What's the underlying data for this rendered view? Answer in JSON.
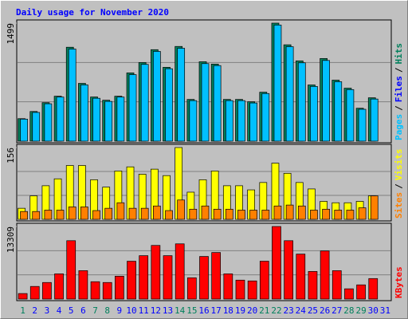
{
  "title": "Daily usage for November 2020",
  "legend_separator": "/",
  "chart_data": [
    {
      "type": "bar",
      "legend": [
        {
          "name": "Pages",
          "color": "#00c0ff"
        },
        {
          "name": "Files",
          "color": "#0000ff"
        },
        {
          "name": "Hits",
          "color": "#00805c"
        }
      ],
      "series": [
        {
          "color": "#00805c",
          "values": [
            286,
            377,
            489,
            571,
            1193,
            734,
            561,
            520,
            571,
            867,
            999,
            1162,
            938,
            1203,
            530,
            1009,
            979,
            530,
            530,
            500,
            622,
            1499,
            1224,
            1020,
            714,
            1050,
            775,
            673,
            418,
            551,
            null
          ]
        },
        {
          "color": "#00c0ff",
          "values": [
            280,
            365,
            475,
            560,
            1170,
            715,
            545,
            505,
            560,
            845,
            975,
            1140,
            920,
            1180,
            515,
            985,
            960,
            515,
            515,
            485,
            605,
            1475,
            1200,
            995,
            695,
            1025,
            755,
            655,
            405,
            535,
            null
          ]
        }
      ],
      "ylim": [
        0,
        1499
      ],
      "yticks": [
        1499
      ],
      "grid": true
    },
    {
      "type": "bar",
      "legend": [
        {
          "name": "Sites",
          "color": "#ff8000"
        },
        {
          "name": "Visits",
          "color": "#ffff00"
        }
      ],
      "series": [
        {
          "color": "#ffff00",
          "values": [
            24,
            51,
            73,
            88,
            117,
            117,
            86,
            70,
            105,
            114,
            98,
            109,
            95,
            156,
            59,
            86,
            105,
            73,
            73,
            64,
            80,
            122,
            100,
            80,
            66,
            39,
            36,
            36,
            39,
            51,
            null
          ]
        },
        {
          "color": "#ff8000",
          "values": [
            17,
            17,
            20,
            20,
            27,
            27,
            19,
            24,
            36,
            24,
            24,
            29,
            19,
            42,
            22,
            29,
            22,
            22,
            20,
            20,
            20,
            29,
            31,
            29,
            20,
            22,
            20,
            20,
            25,
            51,
            null
          ]
        }
      ],
      "ylim": [
        0,
        156
      ],
      "yticks": [
        156
      ],
      "grid": true
    },
    {
      "type": "bar",
      "legend": [
        {
          "name": "KBytes",
          "color": "#ff0000"
        }
      ],
      "series": [
        {
          "color": "#ff0000",
          "values": [
            1013,
            2315,
            3038,
            4629,
            10705,
            5208,
            3183,
            3038,
            4195,
            6944,
            7957,
            9837,
            7957,
            10126,
            3906,
            7812,
            8535,
            4629,
            3472,
            3327,
            6944,
            13309,
            10705,
            8246,
            5063,
            8824,
            5208,
            1881,
            2604,
            3761,
            null
          ]
        }
      ],
      "ylim": [
        0,
        13309
      ],
      "yticks": [
        13309
      ],
      "grid": true,
      "categories": [
        "1",
        "2",
        "3",
        "4",
        "5",
        "6",
        "7",
        "8",
        "9",
        "10",
        "11",
        "12",
        "13",
        "14",
        "15",
        "16",
        "17",
        "18",
        "19",
        "20",
        "21",
        "22",
        "23",
        "24",
        "25",
        "26",
        "27",
        "28",
        "29",
        "30",
        "31"
      ],
      "category_colors": [
        "#00805c",
        "#0000ff",
        "#0000ff",
        "#0000ff",
        "#0000ff",
        "#0000ff",
        "#00805c",
        "#00805c",
        "#0000ff",
        "#0000ff",
        "#0000ff",
        "#0000ff",
        "#0000ff",
        "#00805c",
        "#00805c",
        "#0000ff",
        "#0000ff",
        "#0000ff",
        "#0000ff",
        "#0000ff",
        "#00805c",
        "#00805c",
        "#0000ff",
        "#0000ff",
        "#0000ff",
        "#0000ff",
        "#0000ff",
        "#00805c",
        "#00805c",
        "#0000ff",
        "#0000ff"
      ]
    }
  ]
}
